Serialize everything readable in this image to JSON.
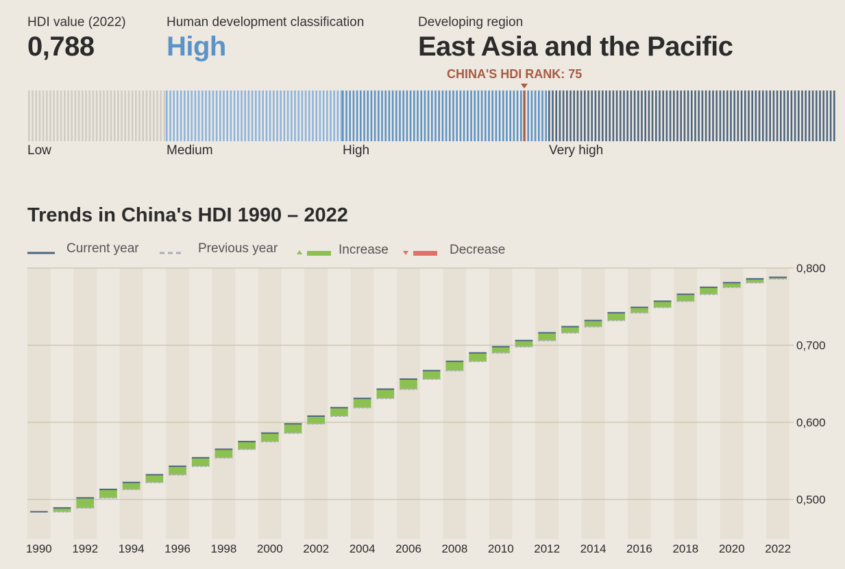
{
  "header": {
    "hdi_label": "HDI value (2022)",
    "hdi_value": "0,788",
    "classification_label": "Human development classification",
    "classification_value": "High",
    "region_label": "Developing region",
    "region_value": "East Asia and the Pacific",
    "rank_label": "CHINA'S HDI RANK: 75"
  },
  "rank_strip": {
    "categories": [
      {
        "label": "Low",
        "color": "#d0ccc3"
      },
      {
        "label": "Medium",
        "color": "#8ab4de"
      },
      {
        "label": "High",
        "color": "#5b93c7"
      },
      {
        "label": "Very high",
        "color": "#4d6580"
      }
    ],
    "marker_color": "#a85a42"
  },
  "legend": {
    "current_year": "Current year",
    "previous_year": "Previous year",
    "increase": "Increase",
    "decrease": "Decrease",
    "colors": {
      "current": "#4d6580",
      "previous": "#a9adb2",
      "increase": "#8cc152",
      "decrease": "#e2706a"
    }
  },
  "chart_data": {
    "type": "bar",
    "title": "Trends in China's HDI 1990 – 2022",
    "x": [
      1990,
      1991,
      1992,
      1993,
      1994,
      1995,
      1996,
      1997,
      1998,
      1999,
      2000,
      2001,
      2002,
      2003,
      2004,
      2005,
      2006,
      2007,
      2008,
      2009,
      2010,
      2011,
      2012,
      2013,
      2014,
      2015,
      2016,
      2017,
      2018,
      2019,
      2020,
      2021,
      2022
    ],
    "x_tick_labels": [
      "1990",
      "1992",
      "1994",
      "1996",
      "1998",
      "2000",
      "2002",
      "2004",
      "2006",
      "2008",
      "2010",
      "2012",
      "2014",
      "2016",
      "2018",
      "2020",
      "2022"
    ],
    "series": [
      {
        "name": "Current year",
        "values": [
          0.484,
          0.489,
          0.502,
          0.513,
          0.522,
          0.532,
          0.543,
          0.554,
          0.565,
          0.575,
          0.586,
          0.598,
          0.608,
          0.619,
          0.631,
          0.643,
          0.656,
          0.667,
          0.679,
          0.69,
          0.698,
          0.706,
          0.716,
          0.724,
          0.732,
          0.742,
          0.749,
          0.757,
          0.766,
          0.775,
          0.781,
          0.786,
          0.788
        ]
      }
    ],
    "ylim": [
      0.45,
      0.8
    ],
    "y_ticks": [
      0.5,
      0.6,
      0.7,
      0.8
    ],
    "y_tick_labels": [
      "0,500",
      "0,600",
      "0,700",
      "0,800"
    ],
    "xlabel": "",
    "ylabel": ""
  }
}
